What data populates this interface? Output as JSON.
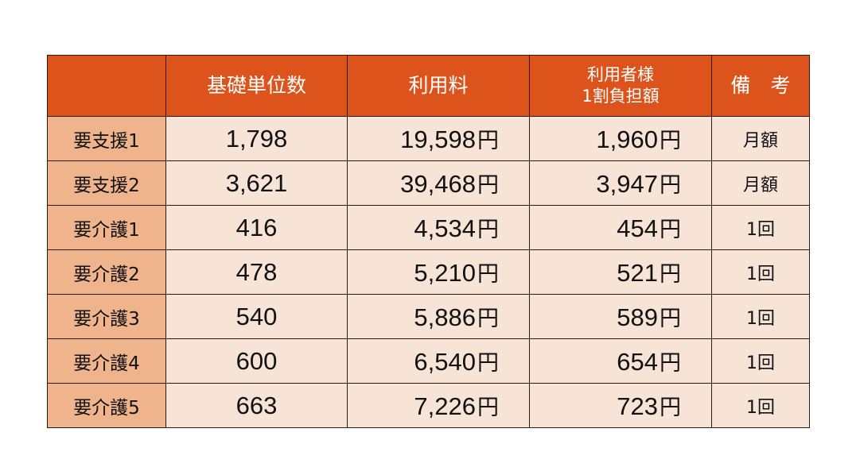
{
  "colors": {
    "header": "#dc541c",
    "row_header": "#efb48c",
    "cell": "#f8e4d6"
  },
  "headers": [
    "",
    "基礎単位数",
    "利用料",
    "利用者様",
    "1割負担額",
    "備　考"
  ],
  "currency": "円",
  "rows": [
    {
      "label": "要支援1",
      "units": "1,798",
      "fee": "19,598",
      "copay": "1,960",
      "note": "月額"
    },
    {
      "label": "要支援2",
      "units": "3,621",
      "fee": "39,468",
      "copay": "3,947",
      "note": "月額"
    },
    {
      "label": "要介護1",
      "units": "416",
      "fee": "4,534",
      "copay": "454",
      "note": "1回"
    },
    {
      "label": "要介護2",
      "units": "478",
      "fee": "5,210",
      "copay": "521",
      "note": "1回"
    },
    {
      "label": "要介護3",
      "units": "540",
      "fee": "5,886",
      "copay": "589",
      "note": "1回"
    },
    {
      "label": "要介護4",
      "units": "600",
      "fee": "6,540",
      "copay": "654",
      "note": "1回"
    },
    {
      "label": "要介護5",
      "units": "663",
      "fee": "7,226",
      "copay": "723",
      "note": "1回"
    }
  ]
}
